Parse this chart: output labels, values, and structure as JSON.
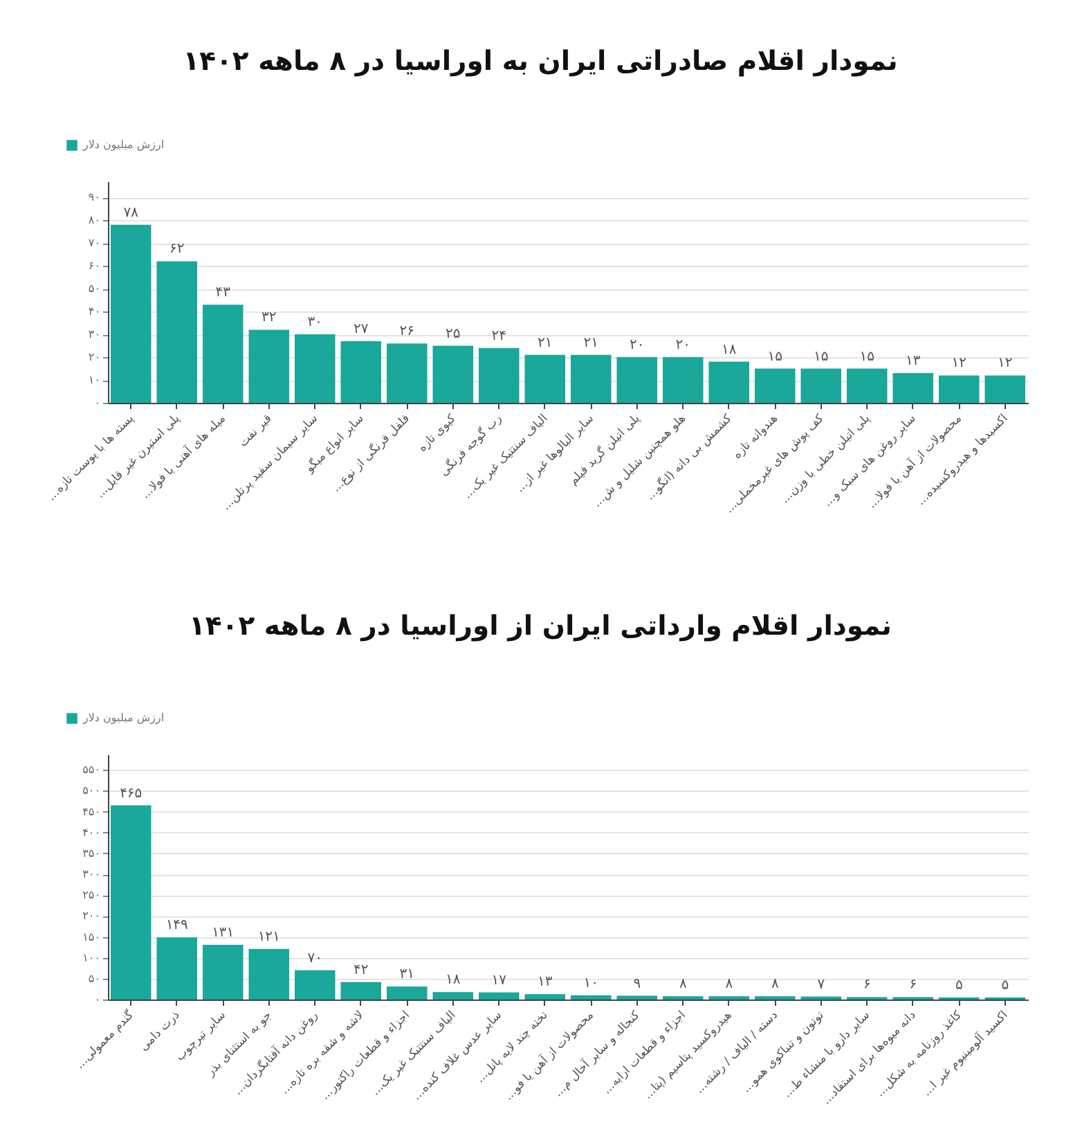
{
  "chart_data": [
    {
      "type": "bar",
      "title": "نمودار اقلام صادراتی ایران به اوراسیا در ۸ ماهه ۱۴۰۲",
      "categories": [
        "پسته ها با پوست تازه...",
        "پلی استیرن غیر قابل...",
        "میله های آهنی یا فولا...",
        "قیر نفت",
        "سایر سیمان سفید پرتلن...",
        "سایر انواع میگو",
        "فلفل فرنگی از نوع...",
        "کیوی تازه",
        "رب گوجه فرنگی",
        "الیاف سنتتیک غیر یک...",
        "سایر البالوها غیر از...",
        "پلی اتیلن گرید فیلم",
        "هلو همچنین شلیل و ش...",
        "کشمش بی دانه (انگو...",
        "هندوانه تازه",
        "کف پوش های غیرمخملی...",
        "پلی اتیلن خطی با وزن...",
        "سایر روغن های سبک و...",
        "محصولات از آهن یا فولا...",
        "اکسیدها و هیدروکسیده..."
      ],
      "series": [
        {
          "name": "ارزش میلیون دلار",
          "color": "#19a89a",
          "values": [
            78,
            62,
            43,
            32,
            30,
            27,
            26,
            25,
            24,
            21,
            21,
            20,
            20,
            18,
            15,
            15,
            15,
            13,
            12,
            12
          ],
          "value_labels": [
            "۷۸",
            "۶۲",
            "۴۳",
            "۳۲",
            "۳۰",
            "۲۷",
            "۲۶",
            "۲۵",
            "۲۴",
            "۲۱",
            "۲۱",
            "۲۰",
            "۲۰",
            "۱۸",
            "۱۵",
            "۱۵",
            "۱۵",
            "۱۳",
            "۱۲",
            "۱۲"
          ]
        }
      ],
      "ylim": [
        0,
        97
      ],
      "yticks": [
        {
          "value": 0,
          "label": "۰"
        },
        {
          "value": 10,
          "label": "۱۰"
        },
        {
          "value": 20,
          "label": "۲۰"
        },
        {
          "value": 30,
          "label": "۳۰"
        },
        {
          "value": 40,
          "label": "۴۰"
        },
        {
          "value": 50,
          "label": "۵۰"
        },
        {
          "value": 60,
          "label": "۶۰"
        },
        {
          "value": 70,
          "label": "۷۰"
        },
        {
          "value": 80,
          "label": "۸۰"
        },
        {
          "value": 90,
          "label": "۹۰"
        }
      ],
      "grid": "y",
      "legend": "top left"
    },
    {
      "type": "bar",
      "title": "نمودار اقلام وارداتی ایران از اوراسیا در ۸ ماهه ۱۴۰۲",
      "categories": [
        "گندم معمولی...",
        "ذرت دامی",
        "سایر تیرچوب",
        "جو به استثنای بذر",
        "روغن دانه آفتابگردان...",
        "لاشه و شقه بره تازه...",
        "اجزاء و قطعات راکتور...",
        "الیاف سنتتیک غیر یک...",
        "سایر عدس غلاف کنده...",
        "تخته چند لایه پانل...",
        "محصولات از آهن یا فو...",
        "کنجاله و سایر آخال م...",
        "اجزاء و قطعات ارابه...",
        "هیدروکسید پتاسیم (پتا...",
        "دسته / الیاف / رشته...",
        "توتون و تنباکوی همو...",
        "سایر دارو با منشاء ط...",
        "دانه میوه‌ها برای استفاد...",
        "کاغذ روزنامه به شکل...",
        "اکسید آلومینیوم غیر ا..."
      ],
      "series": [
        {
          "name": "ارزش میلیون دلار",
          "color": "#19a89a",
          "values": [
            465,
            149,
            131,
            121,
            70,
            42,
            31,
            18,
            17,
            13,
            10,
            9,
            8,
            8,
            8,
            7,
            6,
            6,
            5,
            5
          ],
          "value_labels": [
            "۴۶۵",
            "۱۴۹",
            "۱۳۱",
            "۱۲۱",
            "۷۰",
            "۴۲",
            "۳۱",
            "۱۸",
            "۱۷",
            "۱۳",
            "۱۰",
            "۹",
            "۸",
            "۸",
            "۸",
            "۷",
            "۶",
            "۶",
            "۵",
            "۵"
          ]
        }
      ],
      "ylim": [
        0,
        587
      ],
      "yticks": [
        {
          "value": 0,
          "label": "۰"
        },
        {
          "value": 50,
          "label": "۵۰"
        },
        {
          "value": 100,
          "label": "۱۰۰"
        },
        {
          "value": 150,
          "label": "۱۵۰"
        },
        {
          "value": 200,
          "label": "۲۰۰"
        },
        {
          "value": 250,
          "label": "۲۵۰"
        },
        {
          "value": 300,
          "label": "۳۰۰"
        },
        {
          "value": 350,
          "label": "۳۵۰"
        },
        {
          "value": 400,
          "label": "۴۰۰"
        },
        {
          "value": 450,
          "label": "۴۵۰"
        },
        {
          "value": 500,
          "label": "۵۰۰"
        },
        {
          "value": 550,
          "label": "۵۵۰"
        }
      ],
      "grid": "y",
      "legend": "top left"
    }
  ]
}
